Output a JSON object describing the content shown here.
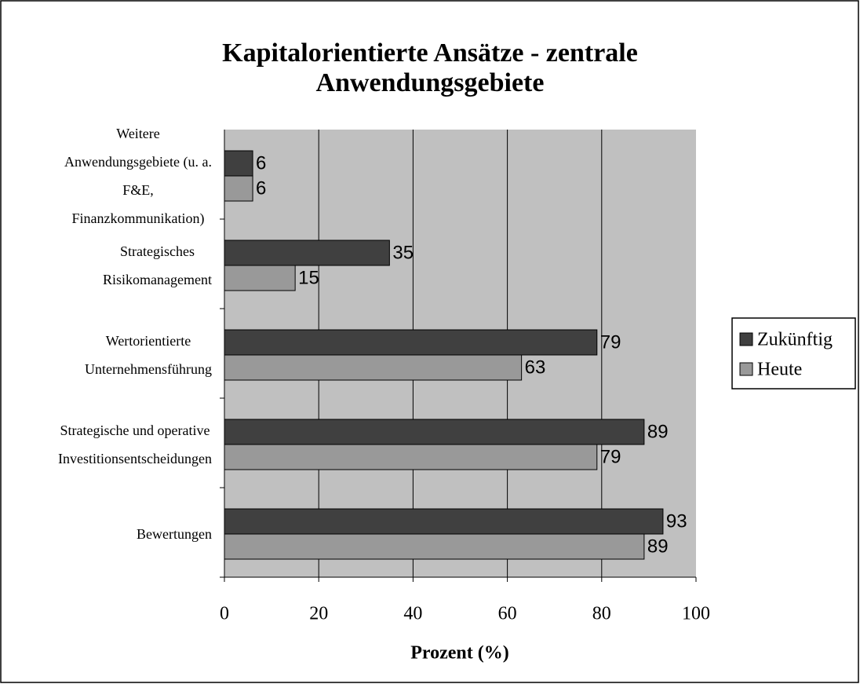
{
  "chart_data": {
    "type": "bar",
    "orientation": "horizontal",
    "title": [
      "Kapitalorientierte Ansätze - zentrale",
      "Anwendungsgebiete"
    ],
    "categories": [
      [
        "Weitere",
        "Anwendungsgebiete (u. a.",
        "F&E,",
        "Finanzkommunikation)"
      ],
      [
        "Strategisches",
        "Risikomanagement"
      ],
      [
        "Wertorientierte",
        "Unternehmensführung"
      ],
      [
        "Strategische und operative",
        "Investitionsentscheidungen"
      ],
      [
        "Bewertungen"
      ]
    ],
    "series": [
      {
        "name": "Zukünftig",
        "color": "#404040",
        "values": [
          6,
          35,
          79,
          89,
          93
        ]
      },
      {
        "name": "Heute",
        "color": "#999999",
        "values": [
          6,
          15,
          63,
          79,
          89
        ]
      }
    ],
    "xlabel": "Prozent (%)",
    "xlim": [
      0,
      100
    ],
    "xticks": [
      0,
      20,
      40,
      60,
      80,
      100
    ],
    "grid": true,
    "legend": "right",
    "plot_background": "#c0c0c0"
  }
}
